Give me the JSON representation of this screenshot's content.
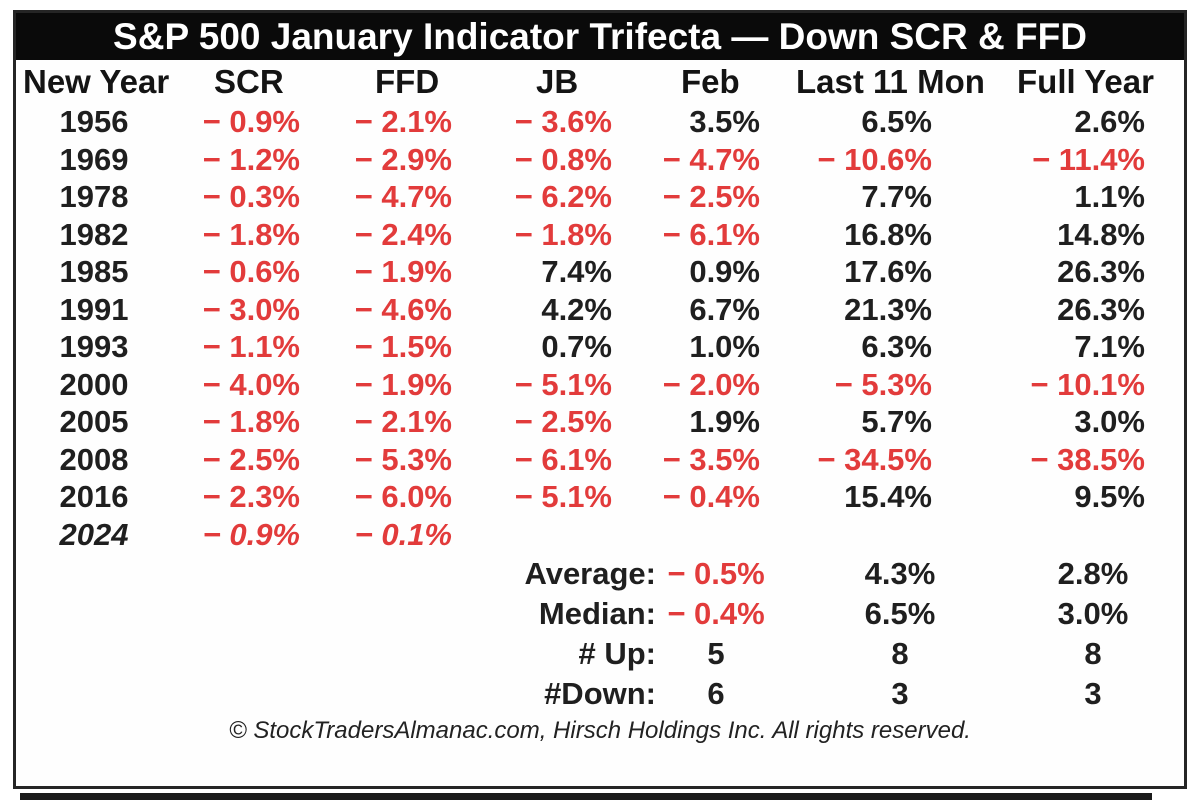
{
  "title": "S&P 500 January Indicator Trifecta — Down SCR & FFD",
  "columns": [
    "New Year",
    "SCR",
    "FFD",
    "JB",
    "Feb",
    "Last 11 Mon",
    "Full Year"
  ],
  "rows": [
    {
      "year": "1956",
      "scr": "− 0.9%",
      "ffd": "− 2.1%",
      "jb": "− 3.6%",
      "feb": "3.5%",
      "last11": "6.5%",
      "full": "2.6%"
    },
    {
      "year": "1969",
      "scr": "− 1.2%",
      "ffd": "− 2.9%",
      "jb": "− 0.8%",
      "feb": "− 4.7%",
      "last11": "− 10.6%",
      "full": "− 11.4%"
    },
    {
      "year": "1978",
      "scr": "− 0.3%",
      "ffd": "− 4.7%",
      "jb": "− 6.2%",
      "feb": "− 2.5%",
      "last11": "7.7%",
      "full": "1.1%"
    },
    {
      "year": "1982",
      "scr": "− 1.8%",
      "ffd": "− 2.4%",
      "jb": "− 1.8%",
      "feb": "− 6.1%",
      "last11": "16.8%",
      "full": "14.8%"
    },
    {
      "year": "1985",
      "scr": "− 0.6%",
      "ffd": "− 1.9%",
      "jb": "7.4%",
      "feb": "0.9%",
      "last11": "17.6%",
      "full": "26.3%"
    },
    {
      "year": "1991",
      "scr": "− 3.0%",
      "ffd": "− 4.6%",
      "jb": "4.2%",
      "feb": "6.7%",
      "last11": "21.3%",
      "full": "26.3%"
    },
    {
      "year": "1993",
      "scr": "− 1.1%",
      "ffd": "− 1.5%",
      "jb": "0.7%",
      "feb": "1.0%",
      "last11": "6.3%",
      "full": "7.1%"
    },
    {
      "year": "2000",
      "scr": "− 4.0%",
      "ffd": "− 1.9%",
      "jb": "− 5.1%",
      "feb": "− 2.0%",
      "last11": "− 5.3%",
      "full": "− 10.1%"
    },
    {
      "year": "2005",
      "scr": "− 1.8%",
      "ffd": "− 2.1%",
      "jb": "− 2.5%",
      "feb": "1.9%",
      "last11": "5.7%",
      "full": "3.0%"
    },
    {
      "year": "2008",
      "scr": "− 2.5%",
      "ffd": "− 5.3%",
      "jb": "− 6.1%",
      "feb": "− 3.5%",
      "last11": "− 34.5%",
      "full": "− 38.5%"
    },
    {
      "year": "2016",
      "scr": "− 2.3%",
      "ffd": "− 6.0%",
      "jb": "− 5.1%",
      "feb": "− 0.4%",
      "last11": "15.4%",
      "full": "9.5%"
    },
    {
      "year": "2024",
      "scr": "− 0.9%",
      "ffd": "− 0.1%",
      "jb": "",
      "feb": "",
      "last11": "",
      "full": "",
      "italic": true
    }
  ],
  "summary": [
    {
      "label": "Average:",
      "feb": "− 0.5%",
      "last11": "4.3%",
      "full": "2.8%"
    },
    {
      "label": "Median:",
      "feb": "− 0.4%",
      "last11": "6.5%",
      "full": "3.0%"
    },
    {
      "label": "# Up:",
      "feb": "5",
      "last11": "8",
      "full": "8"
    },
    {
      "label": "#Down:",
      "feb": "6",
      "last11": "3",
      "full": "3"
    }
  ],
  "footer": "© StockTradersAlmanac.com, Hirsch Holdings Inc. All rights reserved.",
  "colors": {
    "negative_text": "#e23b3b",
    "positive_text": "#1f1f1f",
    "title_background": "#0a0a0a",
    "title_text": "#ffffff"
  }
}
